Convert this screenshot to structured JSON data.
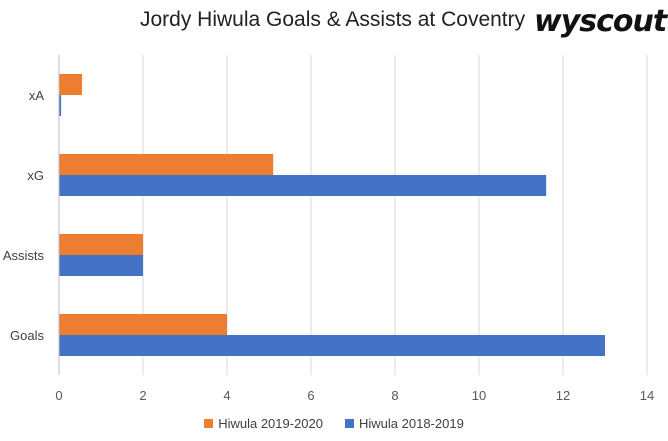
{
  "chart_data": {
    "type": "bar",
    "orientation": "horizontal",
    "title": "Jordy Hiwula Goals & Assists at Coventry",
    "brand": "wyscout",
    "categories": [
      "Goals",
      "Assists",
      "xG",
      "xA"
    ],
    "series": [
      {
        "name": "Hiwula 2019-2020",
        "color": "#ED7D31",
        "values": [
          4,
          2,
          5.1,
          0.55
        ]
      },
      {
        "name": "Hiwula 2018-2019",
        "color": "#4472C4",
        "values": [
          13,
          2,
          11.6,
          0.05
        ]
      }
    ],
    "xlim": [
      0,
      14
    ],
    "xticks": [
      0,
      2,
      4,
      6,
      8,
      10,
      12,
      14
    ],
    "grid": true,
    "legend": "bottom"
  }
}
